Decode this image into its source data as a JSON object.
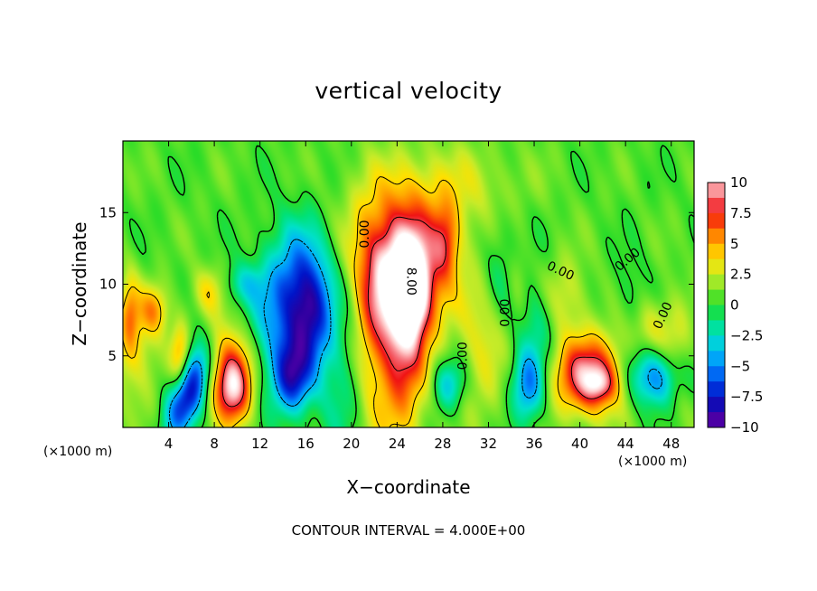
{
  "chart_data": {
    "type": "heatmap",
    "title": "vertical velocity",
    "xlabel": "X−coordinate",
    "ylabel": "Z−coordinate",
    "x_unit_label": "(×1000 m)",
    "y_unit_label": "(×1000 m)",
    "xlim": [
      0,
      50
    ],
    "ylim": [
      0,
      20
    ],
    "x_ticks": [
      "4",
      "8",
      "12",
      "16",
      "20",
      "24",
      "28",
      "32",
      "36",
      "40",
      "44",
      "48"
    ],
    "x_tick_values": [
      4,
      8,
      12,
      16,
      20,
      24,
      28,
      32,
      36,
      40,
      44,
      48
    ],
    "y_ticks": [
      "5",
      "10",
      "15"
    ],
    "y_tick_values": [
      5,
      10,
      15
    ],
    "colorbar_ticks": [
      "10",
      "7.5",
      "5",
      "2.5",
      "0",
      "−2.5",
      "−5",
      "−7.5",
      "−10"
    ],
    "colorbar_values": [
      10,
      7.5,
      5,
      2.5,
      0,
      -2.5,
      -5,
      -7.5,
      -10
    ],
    "contour_labels": [
      {
        "text": "0.00",
        "x": 21.2,
        "y": 13.5,
        "rot": -90
      },
      {
        "text": "8.00",
        "x": 25.2,
        "y": 10.2,
        "rot": 90
      },
      {
        "text": "0.00",
        "x": 29.8,
        "y": 5.0,
        "rot": -90
      },
      {
        "text": "0.00",
        "x": 33.5,
        "y": 8.0,
        "rot": -90
      },
      {
        "text": "0.00",
        "x": 38.3,
        "y": 10.9,
        "rot": 25
      },
      {
        "text": "0.00",
        "x": 44.2,
        "y": 11.7,
        "rot": -40
      },
      {
        "text": "0.00",
        "x": 47.3,
        "y": 7.8,
        "rot": -65
      }
    ],
    "features": [
      {
        "x": 0.6,
        "z": 8,
        "sx": 0.6,
        "sz": 2.0,
        "v": 4
      },
      {
        "x": 2.7,
        "z": 8.2,
        "sx": 0.9,
        "sz": 1.2,
        "v": 4
      },
      {
        "x": 1.2,
        "z": 5,
        "sx": 1.5,
        "sz": 2.5,
        "v": 2.5
      },
      {
        "x": 5.5,
        "z": 2.0,
        "sx": 1.0,
        "sz": 2.0,
        "v": -8,
        "rot": 0.45
      },
      {
        "x": 5.0,
        "z": 5.2,
        "sx": 0.6,
        "sz": 1.6,
        "v": 4
      },
      {
        "x": 6.5,
        "z": 4.5,
        "sx": 0.8,
        "sz": 1.5,
        "v": -3
      },
      {
        "x": 9.6,
        "z": 2.8,
        "sx": 1.2,
        "sz": 1.8,
        "v": 10
      },
      {
        "x": 9.6,
        "z": 5.5,
        "sx": 1.5,
        "sz": 1.8,
        "v": 3
      },
      {
        "x": 7.5,
        "z": 9.5,
        "sx": 1.0,
        "sz": 1.2,
        "v": 3
      },
      {
        "x": 10.5,
        "z": 10.0,
        "sx": 1.2,
        "sz": 1.0,
        "v": -2.5
      },
      {
        "x": 15.5,
        "z": 9.5,
        "sx": 2.0,
        "sz": 3.2,
        "v": -7
      },
      {
        "x": 16.5,
        "z": 7.5,
        "sx": 1.2,
        "sz": 2.4,
        "v": -4
      },
      {
        "x": 14.8,
        "z": 3.5,
        "sx": 1.2,
        "sz": 1.8,
        "v": -7
      },
      {
        "x": 12.5,
        "z": 6.5,
        "sx": 2.0,
        "sz": 3.0,
        "v": -2.5
      },
      {
        "x": 19.0,
        "z": 3.0,
        "sx": 1.5,
        "sz": 3.5,
        "v": -2
      },
      {
        "x": 21.5,
        "z": 6,
        "sx": 1.0,
        "sz": 6,
        "v": 2
      },
      {
        "x": 24.5,
        "z": 10.3,
        "sx": 2.5,
        "sz": 3.0,
        "v": 9
      },
      {
        "x": 25.3,
        "z": 9.5,
        "sx": 0.9,
        "sz": 2.0,
        "v": 6
      },
      {
        "x": 24.3,
        "z": 5.5,
        "sx": 1.6,
        "sz": 4.5,
        "v": 7
      },
      {
        "x": 24.5,
        "z": 14.5,
        "sx": 3.5,
        "sz": 3.0,
        "v": 3
      },
      {
        "x": 28.3,
        "z": 13.0,
        "sx": 0.8,
        "sz": 1.8,
        "v": 4
      },
      {
        "x": 28.5,
        "z": 3.0,
        "sx": 1.0,
        "sz": 1.3,
        "v": -4
      },
      {
        "x": 31.5,
        "z": 6.0,
        "sx": 1.5,
        "sz": 4.0,
        "v": 2.5
      },
      {
        "x": 33.5,
        "z": 11.0,
        "sx": 1.5,
        "sz": 2.5,
        "v": -2.5
      },
      {
        "x": 35.5,
        "z": 3.0,
        "sx": 1.0,
        "sz": 1.8,
        "v": -6
      },
      {
        "x": 34.5,
        "z": 10.5,
        "sx": 0.8,
        "sz": 2.0,
        "v": 2.5
      },
      {
        "x": 36.5,
        "z": 7.5,
        "sx": 1.2,
        "sz": 2.0,
        "v": -2.5
      },
      {
        "x": 40.8,
        "z": 3.6,
        "sx": 2.1,
        "sz": 1.9,
        "v": 9
      },
      {
        "x": 41.8,
        "z": 3.0,
        "sx": 0.9,
        "sz": 0.8,
        "v": 3
      },
      {
        "x": 38.5,
        "z": 9.0,
        "sx": 1.5,
        "sz": 2.0,
        "v": 2.5
      },
      {
        "x": 46.6,
        "z": 3.5,
        "sx": 1.7,
        "sz": 1.4,
        "v": -6
      },
      {
        "x": 46.0,
        "z": 7.0,
        "sx": 1.5,
        "sz": 1.5,
        "v": 2.5
      },
      {
        "x": 44.5,
        "z": 8.5,
        "sx": 1.0,
        "sz": 2.5,
        "v": -1.5
      },
      {
        "x": 48.5,
        "z": 5.0,
        "sx": 1.0,
        "sz": 3.0,
        "v": 2
      },
      {
        "x": 30.0,
        "z": 17,
        "sx": 4.0,
        "sz": 2.0,
        "v": 1.5
      }
    ]
  },
  "contour_interval_label": "CONTOUR INTERVAL = 4.000E+00"
}
